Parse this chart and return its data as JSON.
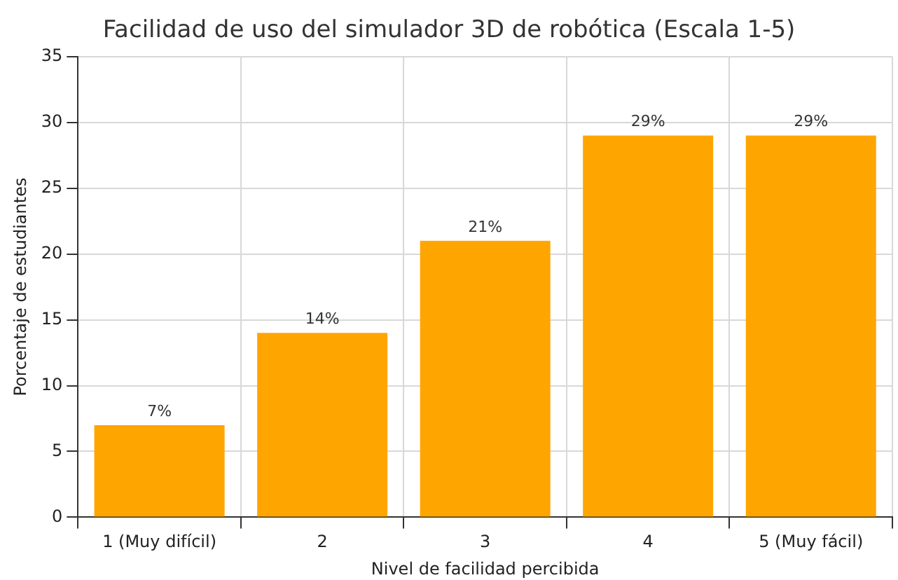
{
  "chart_data": {
    "type": "bar",
    "title": "Facilidad de uso del simulador 3D de robótica (Escala 1-5)",
    "xlabel": "Nivel de facilidad percibida",
    "ylabel": "Porcentaje de estudiantes",
    "categories": [
      "1 (Muy difícil)",
      "2",
      "3",
      "4",
      "5 (Muy fácil)"
    ],
    "values": [
      7,
      14,
      21,
      29,
      29
    ],
    "value_labels": [
      "7%",
      "14%",
      "21%",
      "29%",
      "29%"
    ],
    "color": "#ffa500",
    "ylim": [
      0,
      35
    ],
    "yticks": [
      0,
      5,
      10,
      15,
      20,
      25,
      30,
      35
    ],
    "grid": true,
    "legend": false
  }
}
